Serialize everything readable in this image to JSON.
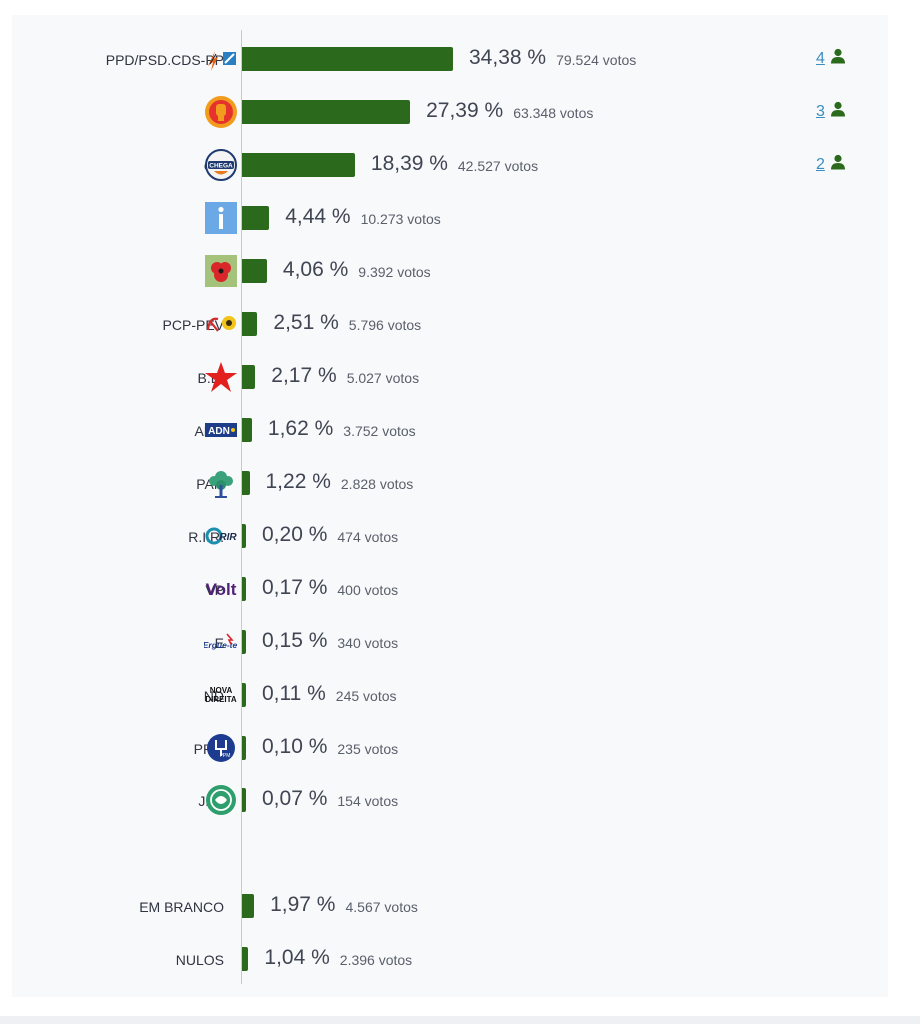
{
  "chart_data": {
    "type": "bar",
    "orientation": "horizontal",
    "bar_color": "#2b6a1c",
    "accent_link_color": "#3b8dbd",
    "rows": [
      {
        "label": "PPD/PSD.CDS-PP",
        "logo": "ppd-psd-cds-pp-logo",
        "value": 34.38,
        "pct": "34,38 %",
        "votes": "79.524 votos",
        "seats": "4"
      },
      {
        "label": "PS",
        "logo": "ps-fist-rose-logo",
        "value": 27.39,
        "pct": "27,39 %",
        "votes": "63.348 votos",
        "seats": "3"
      },
      {
        "label": "CH",
        "logo": "chega-logo",
        "value": 18.39,
        "pct": "18,39 %",
        "votes": "42.527 votos",
        "seats": "2"
      },
      {
        "label": "IL",
        "logo": "iniciativa-liberal-logo",
        "value": 4.44,
        "pct": "4,44 %",
        "votes": "10.273 votos"
      },
      {
        "label": "L",
        "logo": "livre-poppy-logo",
        "value": 4.06,
        "pct": "4,06 %",
        "votes": "9.392 votos"
      },
      {
        "label": "PCP-PEV",
        "logo": "hammer-sickle-sunflower-logo",
        "value": 2.51,
        "pct": "2,51 %",
        "votes": "5.796 votos"
      },
      {
        "label": "B.E.",
        "logo": "bloco-star-logo",
        "value": 2.17,
        "pct": "2,17 %",
        "votes": "5.027 votos"
      },
      {
        "label": "ADN",
        "logo": "adn-logo",
        "logo_text": "ADN",
        "value": 1.62,
        "pct": "1,62 %",
        "votes": "3.752 votos"
      },
      {
        "label": "PAN",
        "logo": "pan-tree-logo",
        "value": 1.22,
        "pct": "1,22 %",
        "votes": "2.828 votos"
      },
      {
        "label": "R.I.R.",
        "logo": "rir-logo",
        "logo_text": "RIR",
        "value": 0.2,
        "pct": "0,20 %",
        "votes": "474 votos"
      },
      {
        "label": "VP",
        "logo": "volt-logo",
        "logo_text": "Volt",
        "value": 0.17,
        "pct": "0,17 %",
        "votes": "400 votos"
      },
      {
        "label": "E",
        "logo": "ergue-te-logo",
        "logo_text": "Ergue-te",
        "value": 0.15,
        "pct": "0,15 %",
        "votes": "340 votos"
      },
      {
        "label": "ND",
        "logo": "nova-direita-logo",
        "logo_text": "NOVA DIREITA",
        "value": 0.11,
        "pct": "0,11 %",
        "votes": "245 votos"
      },
      {
        "label": "PPM",
        "logo": "ppm-logo",
        "logo_text": "PPM",
        "value": 0.1,
        "pct": "0,10 %",
        "votes": "235 votos"
      },
      {
        "label": "JPP",
        "logo": "jpp-logo",
        "value": 0.07,
        "pct": "0,07 %",
        "votes": "154 votos"
      },
      {
        "label": "EM BRANCO",
        "value": 1.97,
        "pct": "1,97 %",
        "votes": "4.567 votos"
      },
      {
        "label": "NULOS",
        "value": 1.04,
        "pct": "1,04 %",
        "votes": "2.396 votos"
      }
    ]
  }
}
